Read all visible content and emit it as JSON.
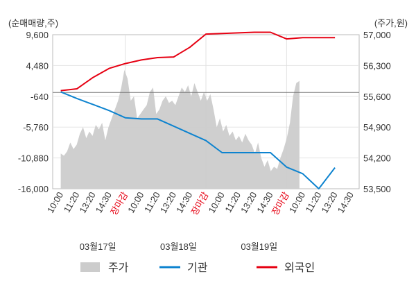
{
  "chart_data": {
    "type": "line",
    "left_unit_label": "(순매매량,주)",
    "right_unit_label": "(주가,원)",
    "left_axis": {
      "ticks": [
        "9,600",
        "4,480",
        "-640",
        "-5,760",
        "-10,880",
        "-16,000"
      ],
      "min": -16000,
      "max": 9600
    },
    "right_axis": {
      "ticks": [
        "57,000",
        "56,300",
        "55,600",
        "54,900",
        "54,200",
        "53,500"
      ],
      "min": 53500,
      "max": 57000
    },
    "x_tick_labels": [
      "10:00",
      "11:20",
      "13:20",
      "14:30",
      "장마감",
      "10:00",
      "11:20",
      "13:20",
      "14:30",
      "장마감",
      "10:00",
      "11:20",
      "13:20",
      "14:30",
      "장마감",
      "10:00",
      "11:20",
      "13:20",
      "14:30"
    ],
    "x_tick_colors": [
      "#333333",
      "#333333",
      "#333333",
      "#333333",
      "#e60012",
      "#333333",
      "#333333",
      "#333333",
      "#333333",
      "#e60012",
      "#333333",
      "#333333",
      "#333333",
      "#333333",
      "#e60012",
      "#333333",
      "#333333",
      "#333333",
      "#333333"
    ],
    "date_labels": [
      "03월17일",
      "03월18일",
      "03월19일"
    ],
    "legend": [
      {
        "label": "주가",
        "color": "#cccccc",
        "shape": "box"
      },
      {
        "label": "기관",
        "color": "#0d83cf",
        "shape": "line"
      },
      {
        "label": "외국인",
        "color": "#e60012",
        "shape": "line"
      }
    ],
    "series": [
      {
        "name": "기관",
        "axis": "left",
        "color": "#0d83cf",
        "x": [
          0,
          1,
          2,
          3,
          4,
          5,
          6,
          7,
          8,
          9,
          10,
          11,
          12,
          13,
          14,
          15,
          16,
          17
        ],
        "values": [
          100,
          -1000,
          -2000,
          -3000,
          -4200,
          -4400,
          -4400,
          -5600,
          -6800,
          -8000,
          -10000,
          -10000,
          -10000,
          -10000,
          -12400,
          -13500,
          -16000,
          -12500
        ]
      },
      {
        "name": "외국인",
        "axis": "left",
        "color": "#e60012",
        "x": [
          0,
          1,
          2,
          3,
          4,
          5,
          6,
          7,
          8,
          9,
          10,
          11,
          12,
          13,
          14,
          15,
          16,
          17
        ],
        "values": [
          300,
          600,
          2500,
          4000,
          4800,
          5400,
          5800,
          5900,
          7500,
          9700,
          9800,
          9900,
          10000,
          10000,
          8900,
          9100,
          9100,
          9100
        ]
      },
      {
        "name": "주가",
        "axis": "right",
        "type": "area",
        "color": "#cccccc",
        "x_start": 0,
        "x_end": 14.8,
        "values": [
          54300,
          54250,
          54350,
          54550,
          54400,
          54500,
          54750,
          54900,
          54650,
          54800,
          54700,
          54950,
          54850,
          55000,
          54600,
          54900,
          55100,
          55300,
          55500,
          55800,
          56200,
          56000,
          55500,
          55600,
          55100,
          55200,
          55300,
          55400,
          55700,
          55800,
          55200,
          55300,
          55500,
          55600,
          55450,
          55500,
          55400,
          55600,
          55800,
          55700,
          55850,
          55600,
          55900,
          55700,
          55500,
          55700,
          55500,
          55650,
          55300,
          54900,
          55100,
          54800,
          54950,
          54700,
          54800,
          54600,
          54700,
          54550,
          54750,
          54600,
          54500,
          54300,
          54550,
          54200,
          54000,
          54150,
          53900,
          54000,
          53950,
          54200,
          54400,
          54650,
          55000,
          55600,
          55900,
          55950
        ]
      }
    ]
  }
}
